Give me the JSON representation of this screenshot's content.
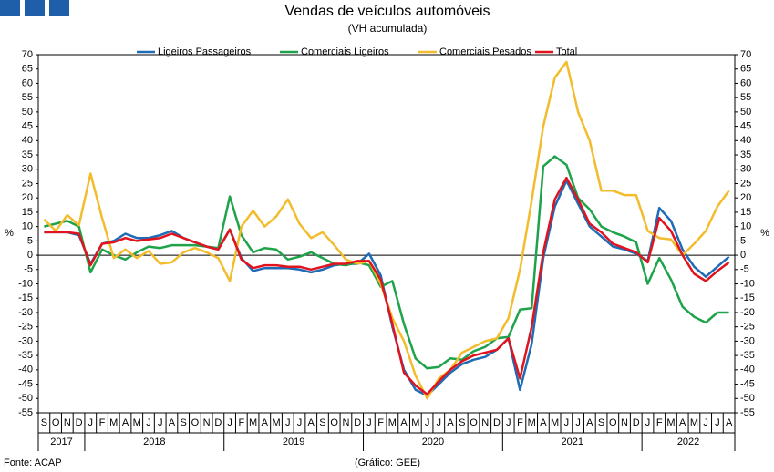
{
  "chart_data": {
    "type": "line",
    "title": "Vendas de veículos automóveis",
    "subtitle": "(VH acumulada)",
    "y_label": "%",
    "source": "Fonte: ACAP",
    "credit": "(Gráfico: GEE)",
    "categories": [
      "S",
      "O",
      "N",
      "D",
      "J",
      "F",
      "M",
      "A",
      "M",
      "J",
      "J",
      "A",
      "S",
      "O",
      "N",
      "D",
      "J",
      "F",
      "M",
      "A",
      "M",
      "J",
      "J",
      "A",
      "S",
      "O",
      "N",
      "D",
      "J",
      "F",
      "M",
      "A",
      "M",
      "J",
      "J",
      "A",
      "S",
      "O",
      "N",
      "D",
      "J",
      "F",
      "M",
      "A",
      "M",
      "J",
      "J",
      "A",
      "S",
      "O",
      "N",
      "D",
      "J",
      "F",
      "M",
      "A",
      "M",
      "J",
      "J",
      "A"
    ],
    "years": [
      "2017",
      "2018",
      "2019",
      "2020",
      "2021",
      "2022"
    ],
    "ylim": [
      -55,
      70
    ],
    "yticks": [
      -55,
      -50,
      -45,
      -40,
      -35,
      -30,
      -25,
      -20,
      -15,
      -10,
      -5,
      0,
      5,
      10,
      15,
      20,
      25,
      30,
      35,
      40,
      45,
      50,
      55,
      60,
      65,
      70
    ],
    "legend": "top",
    "series": [
      {
        "name": "Ligeiros Passageiros",
        "color": "#1f6bb5",
        "values": [
          8,
          8,
          8,
          7,
          -3,
          4,
          5,
          7.5,
          6,
          6,
          7,
          8.5,
          6,
          4.5,
          3,
          2,
          9,
          -1,
          -5.5,
          -4.5,
          -4.5,
          -4.5,
          -5,
          -6,
          -5,
          -3.5,
          -3,
          -3,
          0.5,
          -7,
          -25,
          -40,
          -47,
          -49,
          -45,
          -41,
          -38,
          -36.5,
          -35.5,
          -33,
          -29,
          -47,
          -31,
          -1,
          17,
          26,
          18,
          10,
          6.5,
          3,
          2,
          0.5,
          -2,
          16.5,
          12,
          2,
          -4,
          -7.5,
          -4,
          -0.5
        ]
      },
      {
        "name": "Comerciais Ligeiros",
        "color": "#1ea34a",
        "values": [
          10,
          11,
          12,
          10,
          -6,
          2,
          0,
          -1.5,
          1,
          3,
          2.5,
          3.5,
          3.5,
          3.5,
          3,
          2.5,
          20.5,
          7,
          1,
          2.5,
          2,
          -1.5,
          -0.5,
          1,
          -1,
          -3,
          -3.5,
          -2.5,
          -3.5,
          -11,
          -9,
          -24,
          -36,
          -39.5,
          -39,
          -36,
          -36.5,
          -33.5,
          -32,
          -29,
          -28.5,
          -19,
          -18.5,
          31,
          34.5,
          31.5,
          20,
          16,
          10,
          8,
          6.5,
          4.5,
          -10,
          -1,
          -8.5,
          -18,
          -21.5,
          -23.5,
          -20,
          -20
        ]
      },
      {
        "name": "Comerciais Pesados",
        "color": "#f2bc2c",
        "values": [
          12.5,
          8.5,
          14,
          10.5,
          28.5,
          13,
          -1,
          2,
          -1,
          1.5,
          -3,
          -2.5,
          1,
          2.5,
          1,
          -1,
          -9,
          10,
          15.5,
          10,
          13.5,
          19.5,
          11,
          6,
          8,
          3.5,
          -1.5,
          -3,
          -2,
          -10,
          -22,
          -30,
          -42,
          -50,
          -43,
          -40,
          -34,
          -32,
          -30,
          -29,
          -22,
          -5,
          19,
          45,
          62,
          67.5,
          50,
          40,
          22.5,
          22.5,
          21,
          21,
          8.5,
          6,
          5.5,
          0,
          4,
          8.5,
          17,
          22.5
        ]
      },
      {
        "name": "Total",
        "color": "#e0141e",
        "values": [
          8,
          8,
          8,
          7.5,
          -3.5,
          4,
          4.5,
          6,
          5,
          5.5,
          6,
          7.5,
          6,
          4.5,
          3,
          2,
          9,
          -1.5,
          -4.5,
          -3.5,
          -3.5,
          -4,
          -4,
          -5,
          -4,
          -3,
          -3,
          -2,
          -2,
          -8.5,
          -24,
          -41,
          -45.5,
          -48.5,
          -44,
          -40,
          -37,
          -35,
          -34,
          -33,
          -29,
          -43,
          -25,
          1,
          19.5,
          27,
          19.5,
          11,
          8,
          4,
          2.5,
          1,
          -2.5,
          13,
          8.5,
          0,
          -6.5,
          -9,
          -5.5,
          -2.5
        ]
      }
    ]
  }
}
